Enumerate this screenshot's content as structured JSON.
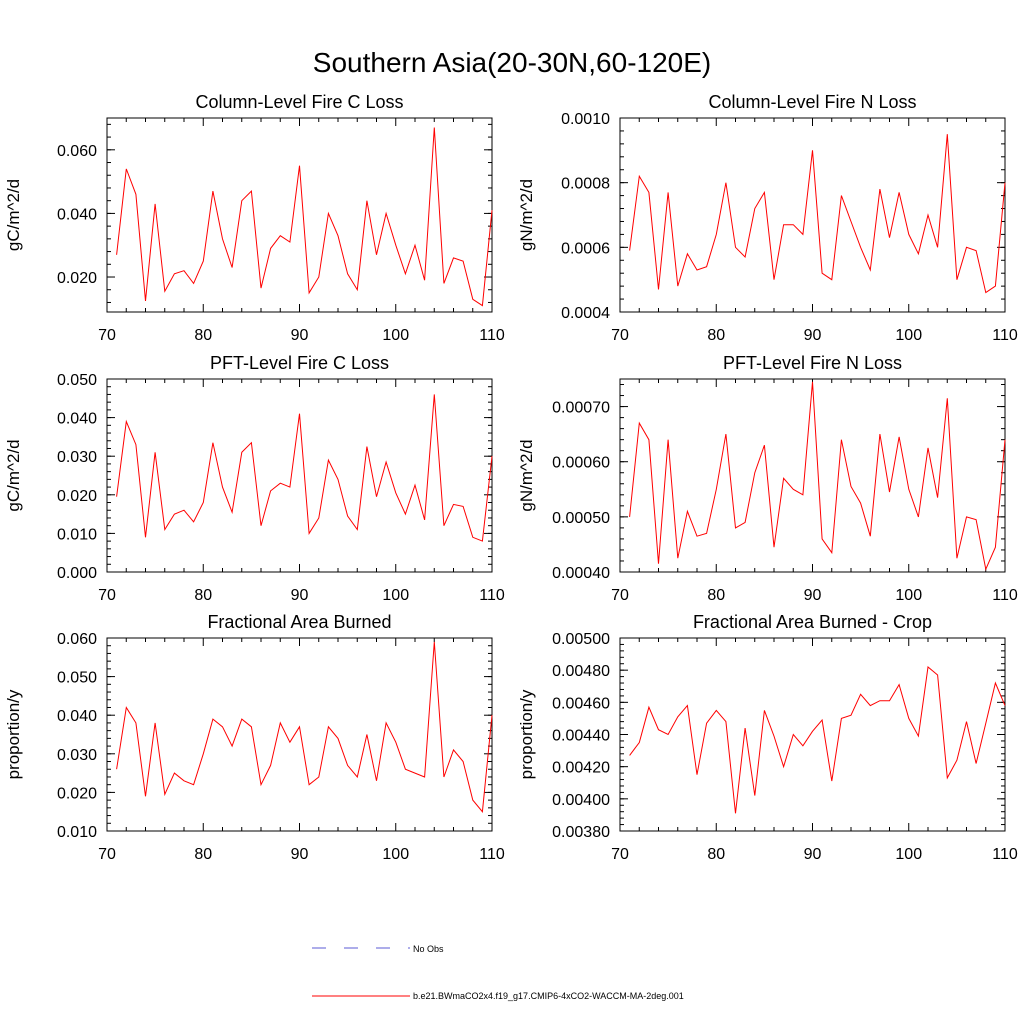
{
  "title": "Southern Asia(20-30N,60-120E)",
  "legend": {
    "obs_label": "No Obs",
    "obs_color": "#5b5bd6",
    "model_label": "b.e21.BWmaCO2x4.f19_g17.CMIP6-4xCO2-WACCM-MA-2deg.001",
    "model_color": "#ff0000"
  },
  "chart_data": [
    {
      "type": "line",
      "title": "Column-Level Fire C Loss",
      "ylabel": "gC/m^2/d",
      "xlim": [
        70,
        110
      ],
      "ylim": [
        0.009,
        0.07
      ],
      "xticks": [
        70,
        80,
        90,
        100,
        110
      ],
      "yticks": [
        0.02,
        0.04,
        0.06
      ],
      "ytick_labels": [
        "0.020",
        "0.040",
        "0.060"
      ],
      "x": [
        71,
        72,
        73,
        74,
        75,
        76,
        77,
        78,
        79,
        80,
        81,
        82,
        83,
        84,
        85,
        86,
        87,
        88,
        89,
        90,
        91,
        92,
        93,
        94,
        95,
        96,
        97,
        98,
        99,
        100,
        101,
        102,
        103,
        104,
        105,
        106,
        107,
        108,
        109,
        110
      ],
      "values": [
        0.027,
        0.054,
        0.046,
        0.0125,
        0.043,
        0.0155,
        0.021,
        0.022,
        0.018,
        0.025,
        0.047,
        0.032,
        0.023,
        0.044,
        0.047,
        0.0165,
        0.029,
        0.033,
        0.031,
        0.055,
        0.015,
        0.02,
        0.04,
        0.033,
        0.021,
        0.016,
        0.044,
        0.027,
        0.04,
        0.03,
        0.021,
        0.03,
        0.019,
        0.067,
        0.018,
        0.026,
        0.025,
        0.013,
        0.011,
        0.041
      ]
    },
    {
      "type": "line",
      "title": "Column-Level Fire N Loss",
      "ylabel": "gN/m^2/d",
      "xlim": [
        70,
        110
      ],
      "ylim": [
        0.0004,
        0.001
      ],
      "xticks": [
        70,
        80,
        90,
        100,
        110
      ],
      "yticks": [
        0.0004,
        0.0006,
        0.0008,
        0.001
      ],
      "ytick_labels": [
        "0.0004",
        "0.0006",
        "0.0008",
        "0.0010"
      ],
      "x": [
        71,
        72,
        73,
        74,
        75,
        76,
        77,
        78,
        79,
        80,
        81,
        82,
        83,
        84,
        85,
        86,
        87,
        88,
        89,
        90,
        91,
        92,
        93,
        94,
        95,
        96,
        97,
        98,
        99,
        100,
        101,
        102,
        103,
        104,
        105,
        106,
        107,
        108,
        109,
        110
      ],
      "values": [
        0.00059,
        0.00082,
        0.00077,
        0.00047,
        0.00077,
        0.00048,
        0.00058,
        0.00053,
        0.00054,
        0.00064,
        0.0008,
        0.0006,
        0.00057,
        0.00072,
        0.00077,
        0.0005,
        0.00067,
        0.00067,
        0.00064,
        0.0009,
        0.00052,
        0.0005,
        0.00076,
        0.00068,
        0.0006,
        0.00053,
        0.00078,
        0.00063,
        0.00077,
        0.00064,
        0.00058,
        0.0007,
        0.0006,
        0.00095,
        0.0005,
        0.0006,
        0.00059,
        0.00046,
        0.00048,
        0.0008
      ]
    },
    {
      "type": "line",
      "title": "PFT-Level Fire C Loss",
      "ylabel": "gC/m^2/d",
      "xlim": [
        70,
        110
      ],
      "ylim": [
        0.0,
        0.05
      ],
      "xticks": [
        70,
        80,
        90,
        100,
        110
      ],
      "yticks": [
        0.0,
        0.01,
        0.02,
        0.03,
        0.04,
        0.05
      ],
      "ytick_labels": [
        "0.000",
        "0.010",
        "0.020",
        "0.030",
        "0.040",
        "0.050"
      ],
      "x": [
        71,
        72,
        73,
        74,
        75,
        76,
        77,
        78,
        79,
        80,
        81,
        82,
        83,
        84,
        85,
        86,
        87,
        88,
        89,
        90,
        91,
        92,
        93,
        94,
        95,
        96,
        97,
        98,
        99,
        100,
        101,
        102,
        103,
        104,
        105,
        106,
        107,
        108,
        109,
        110
      ],
      "values": [
        0.0195,
        0.039,
        0.033,
        0.009,
        0.031,
        0.011,
        0.015,
        0.016,
        0.013,
        0.018,
        0.0335,
        0.022,
        0.0155,
        0.031,
        0.0335,
        0.012,
        0.021,
        0.023,
        0.022,
        0.041,
        0.01,
        0.014,
        0.029,
        0.024,
        0.0145,
        0.011,
        0.0325,
        0.0195,
        0.0285,
        0.0205,
        0.015,
        0.0225,
        0.0135,
        0.046,
        0.012,
        0.0175,
        0.017,
        0.009,
        0.008,
        0.03
      ]
    },
    {
      "type": "line",
      "title": "PFT-Level Fire N Loss",
      "ylabel": "gN/m^2/d",
      "xlim": [
        70,
        110
      ],
      "ylim": [
        0.0004,
        0.00075
      ],
      "xticks": [
        70,
        80,
        90,
        100,
        110
      ],
      "yticks": [
        0.0004,
        0.0005,
        0.0006,
        0.0007
      ],
      "ytick_labels": [
        "0.00040",
        "0.00050",
        "0.00060",
        "0.00070"
      ],
      "x": [
        71,
        72,
        73,
        74,
        75,
        76,
        77,
        78,
        79,
        80,
        81,
        82,
        83,
        84,
        85,
        86,
        87,
        88,
        89,
        90,
        91,
        92,
        93,
        94,
        95,
        96,
        97,
        98,
        99,
        100,
        101,
        102,
        103,
        104,
        105,
        106,
        107,
        108,
        109,
        110
      ],
      "values": [
        0.0005,
        0.00067,
        0.00064,
        0.000415,
        0.00064,
        0.000425,
        0.00051,
        0.000465,
        0.00047,
        0.00055,
        0.00065,
        0.00048,
        0.00049,
        0.00058,
        0.00063,
        0.000445,
        0.00057,
        0.00055,
        0.00054,
        0.000745,
        0.00046,
        0.000435,
        0.00064,
        0.000555,
        0.000525,
        0.000465,
        0.00065,
        0.000545,
        0.000645,
        0.00055,
        0.0005,
        0.000625,
        0.000535,
        0.000715,
        0.000425,
        0.0005,
        0.000495,
        0.000405,
        0.000445,
        0.00064
      ]
    },
    {
      "type": "line",
      "title": "Fractional Area Burned",
      "ylabel": "proportion/y",
      "xlim": [
        70,
        110
      ],
      "ylim": [
        0.01,
        0.06
      ],
      "xticks": [
        70,
        80,
        90,
        100,
        110
      ],
      "yticks": [
        0.01,
        0.02,
        0.03,
        0.04,
        0.05,
        0.06
      ],
      "ytick_labels": [
        "0.010",
        "0.020",
        "0.030",
        "0.040",
        "0.050",
        "0.060"
      ],
      "x": [
        71,
        72,
        73,
        74,
        75,
        76,
        77,
        78,
        79,
        80,
        81,
        82,
        83,
        84,
        85,
        86,
        87,
        88,
        89,
        90,
        91,
        92,
        93,
        94,
        95,
        96,
        97,
        98,
        99,
        100,
        101,
        102,
        103,
        104,
        105,
        106,
        107,
        108,
        109,
        110
      ],
      "values": [
        0.026,
        0.042,
        0.038,
        0.019,
        0.038,
        0.0195,
        0.025,
        0.023,
        0.022,
        0.03,
        0.039,
        0.037,
        0.032,
        0.039,
        0.037,
        0.022,
        0.027,
        0.038,
        0.033,
        0.037,
        0.022,
        0.024,
        0.037,
        0.034,
        0.027,
        0.024,
        0.035,
        0.023,
        0.038,
        0.033,
        0.026,
        0.025,
        0.024,
        0.059,
        0.024,
        0.031,
        0.028,
        0.018,
        0.015,
        0.04
      ]
    },
    {
      "type": "line",
      "title": "Fractional Area Burned - Crop",
      "ylabel": "proportion/y",
      "xlim": [
        70,
        110
      ],
      "ylim": [
        0.0038,
        0.005
      ],
      "xticks": [
        70,
        80,
        90,
        100,
        110
      ],
      "yticks": [
        0.0038,
        0.004,
        0.0042,
        0.0044,
        0.0046,
        0.0048,
        0.005
      ],
      "ytick_labels": [
        "0.00380",
        "0.00400",
        "0.00420",
        "0.00440",
        "0.00460",
        "0.00480",
        "0.00500"
      ],
      "x": [
        71,
        72,
        73,
        74,
        75,
        76,
        77,
        78,
        79,
        80,
        81,
        82,
        83,
        84,
        85,
        86,
        87,
        88,
        89,
        90,
        91,
        92,
        93,
        94,
        95,
        96,
        97,
        98,
        99,
        100,
        101,
        102,
        103,
        104,
        105,
        106,
        107,
        108,
        109,
        110
      ],
      "values": [
        0.00427,
        0.00435,
        0.00457,
        0.00443,
        0.0044,
        0.00451,
        0.00458,
        0.00415,
        0.00447,
        0.00455,
        0.00448,
        0.00391,
        0.00444,
        0.00402,
        0.00455,
        0.00439,
        0.0042,
        0.0044,
        0.00433,
        0.00442,
        0.00449,
        0.00411,
        0.0045,
        0.00452,
        0.00465,
        0.00458,
        0.00461,
        0.00461,
        0.00471,
        0.0045,
        0.00439,
        0.00482,
        0.00477,
        0.00413,
        0.00424,
        0.00448,
        0.00422,
        0.00447,
        0.00472,
        0.00458
      ]
    }
  ]
}
